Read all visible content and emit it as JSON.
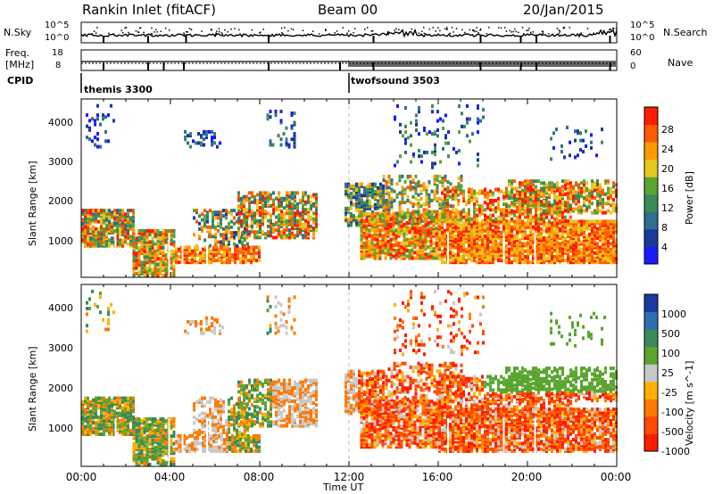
{
  "header": {
    "station": "Rankin Inlet (fitACF)",
    "beam": "Beam 00",
    "date": "20/Jan/2015"
  },
  "top_panel": {
    "left_label": "N.Sky",
    "left_ticks": [
      "10^5",
      "10^0"
    ],
    "right_label": "N.Search",
    "right_ticks": [
      "10^5",
      "10^0"
    ]
  },
  "freq_panel": {
    "left_label_1": "Freq.",
    "left_label_2": "[MHz]",
    "left_ticks": [
      "18",
      "8"
    ],
    "right_label": "Nave",
    "right_ticks": [
      "60",
      "0"
    ],
    "cpid_label": "CPID",
    "cpid_1": "themis 3300",
    "cpid_2": "twofsound 3503"
  },
  "colors": {
    "power_scale": [
      "#1a1aff",
      "#1a3a9a",
      "#2e6f8e",
      "#3a8a5a",
      "#5aa530",
      "#e6c820",
      "#ff9a00",
      "#ff5a00",
      "#ff1a00"
    ],
    "velocity_scale": [
      "#1a3aa0",
      "#2e6faf",
      "#3a8a5a",
      "#5aa530",
      "#c8c8c8",
      "#ffb000",
      "#ff7a00",
      "#ff4a00",
      "#ff1a00"
    ]
  },
  "chart_data": [
    {
      "type": "heatmap",
      "title": "",
      "xlabel": "Time UT",
      "ylabel": "Slant Range [km]",
      "x_ticks": [
        "00:00",
        "04:00",
        "08:00",
        "12:00",
        "16:00",
        "20:00",
        "00:00"
      ],
      "xlim_hours": [
        0,
        24
      ],
      "y_ticks": [
        1000,
        2000,
        3000,
        4000
      ],
      "ylim": [
        180,
        4500
      ],
      "colorbar_label": "Power [dB]",
      "colorbar_ticks": [
        4,
        8,
        12,
        16,
        20,
        24,
        28
      ],
      "colorbar_range": [
        0,
        32
      ]
    },
    {
      "type": "heatmap",
      "title": "",
      "xlabel": "Time UT",
      "ylabel": "Slant Range [km]",
      "x_ticks": [
        "00:00",
        "04:00",
        "08:00",
        "12:00",
        "16:00",
        "20:00",
        "00:00"
      ],
      "xlim_hours": [
        0,
        24
      ],
      "y_ticks": [
        1000,
        2000,
        3000,
        4000
      ],
      "ylim": [
        180,
        4500
      ],
      "colorbar_label": "Velocity [m s^-1]",
      "colorbar_ticks": [
        1000,
        500,
        100,
        25,
        -25,
        -100,
        -500,
        -1000
      ]
    }
  ]
}
